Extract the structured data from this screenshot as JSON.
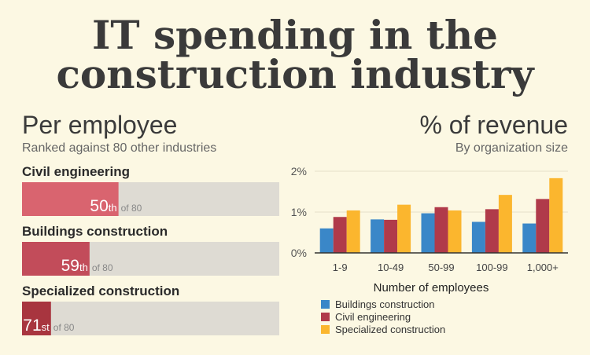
{
  "title_lines": [
    "IT spending in the",
    "construction industry"
  ],
  "chart_data": [
    {
      "type": "rank",
      "title": "Per employee",
      "subtitle": "Ranked against 80 other industries",
      "categories": [
        "Civil engineering",
        "Buildings construction",
        "Specialized construction"
      ],
      "values": [
        50,
        59,
        71
      ],
      "rank_suffixes": [
        "th",
        "th",
        "st"
      ],
      "rank_of_label": "of 80",
      "xlim": [
        80,
        0
      ],
      "colors": [
        "#d9646f",
        "#c24c5a",
        "#a8353f"
      ]
    },
    {
      "type": "grouped-bar",
      "title": "% of revenue",
      "subtitle": "By organization size",
      "xlabel": "Number of employees",
      "categories": [
        "1-9",
        "10-49",
        "50-99",
        "100-99",
        "1,000+"
      ],
      "series": [
        {
          "name": "Buildings construction",
          "color": "#3a87c8",
          "values": [
            0.6,
            0.82,
            0.97,
            0.76,
            0.72
          ]
        },
        {
          "name": "Civil engineering",
          "color": "#b03a4a",
          "values": [
            0.88,
            0.81,
            1.12,
            1.07,
            1.32
          ]
        },
        {
          "name": "Specialized construction",
          "color": "#fbb62e",
          "values": [
            1.04,
            1.18,
            1.04,
            1.42,
            1.83
          ]
        }
      ],
      "ylim": [
        0,
        2
      ],
      "yticks": [
        {
          "value": 0,
          "label": "0%"
        },
        {
          "value": 1,
          "label": "1%"
        },
        {
          "value": 2,
          "label": "2%"
        }
      ],
      "grid": true
    }
  ]
}
